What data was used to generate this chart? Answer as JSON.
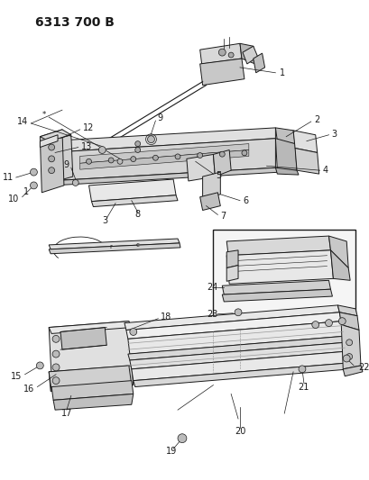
{
  "title": "6313 700 B",
  "bg_color": "#ffffff",
  "line_color": "#1a1a1a",
  "title_fontsize": 10,
  "label_fontsize": 7,
  "fig_width": 4.1,
  "fig_height": 5.33,
  "dpi": 100
}
